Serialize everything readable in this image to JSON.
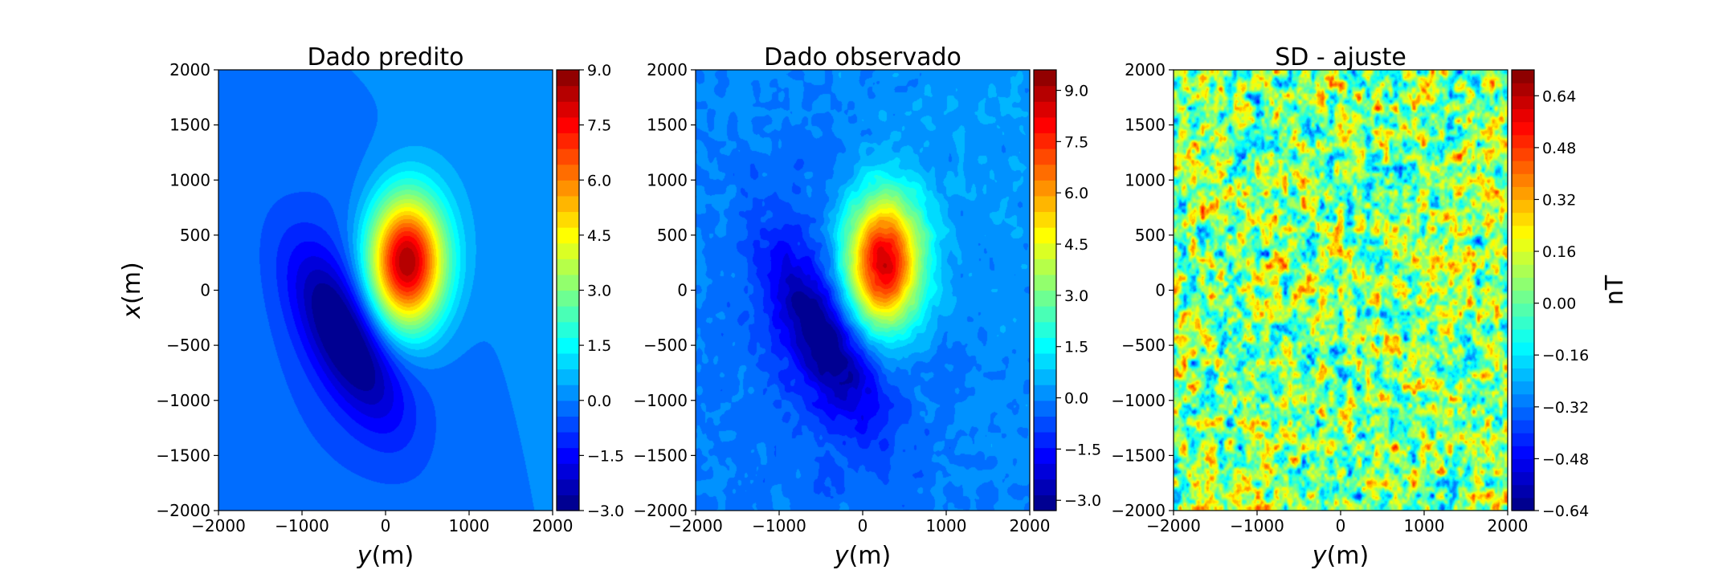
{
  "chart_data": [
    {
      "type": "heatmap",
      "title": "Dado predito",
      "xlabel": "y(m)",
      "ylabel": "x(m)",
      "xlim": [
        -2000,
        2000
      ],
      "ylim": [
        -2000,
        2000
      ],
      "xticks": [
        "−2000",
        "−1000",
        "0",
        "1000",
        "2000"
      ],
      "yticks": [
        "2000",
        "1500",
        "1000",
        "500",
        "0",
        "−500",
        "−1000",
        "−1500",
        "−2000"
      ],
      "colormap": "jet",
      "colorbar": {
        "range": [
          -3.0,
          9.0
        ],
        "ticks": [
          "9.0",
          "7.5",
          "6.0",
          "4.5",
          "3.0",
          "1.5",
          "0.0",
          "−1.5",
          "−3.0"
        ],
        "label": ""
      },
      "features": {
        "positive_peak": {
          "x": 250,
          "y": 250,
          "value": 9.0
        },
        "negative_peak": {
          "x": -500,
          "y": -500,
          "value": -3.0
        }
      }
    },
    {
      "type": "heatmap",
      "title": "Dado observado",
      "xlabel": "y(m)",
      "ylabel": "",
      "xlim": [
        -2000,
        2000
      ],
      "ylim": [
        -2000,
        2000
      ],
      "xticks": [
        "−2000",
        "−1000",
        "0",
        "1000",
        "2000"
      ],
      "yticks": [
        "2000",
        "1500",
        "1000",
        "500",
        "0",
        "−500",
        "−1000",
        "−1500",
        "−2000"
      ],
      "colormap": "jet",
      "colorbar": {
        "range": [
          -3.3,
          9.6
        ],
        "ticks": [
          "9.0",
          "7.5",
          "6.0",
          "4.5",
          "3.0",
          "1.5",
          "0.0",
          "−1.5",
          "−3.0"
        ],
        "label": ""
      },
      "features": {
        "positive_peak": {
          "x": 250,
          "y": 250,
          "value": 9.3
        },
        "negative_peak": {
          "x": -500,
          "y": -500,
          "value": -3.2
        }
      }
    },
    {
      "type": "heatmap",
      "title": "SD - ajuste",
      "xlabel": "y(m)",
      "ylabel": "",
      "xlim": [
        -2000,
        2000
      ],
      "ylim": [
        -2000,
        2000
      ],
      "xticks": [
        "−2000",
        "−1000",
        "0",
        "1000",
        "2000"
      ],
      "yticks": [
        "2000",
        "1500",
        "1000",
        "500",
        "0",
        "−500",
        "−1000",
        "−1500",
        "−2000"
      ],
      "colormap": "jet",
      "colorbar": {
        "range": [
          -0.64,
          0.72
        ],
        "ticks": [
          "0.64",
          "0.48",
          "0.32",
          "0.16",
          "0.00",
          "−0.16",
          "−0.32",
          "−0.48",
          "−0.64"
        ],
        "label": "nT"
      }
    }
  ]
}
